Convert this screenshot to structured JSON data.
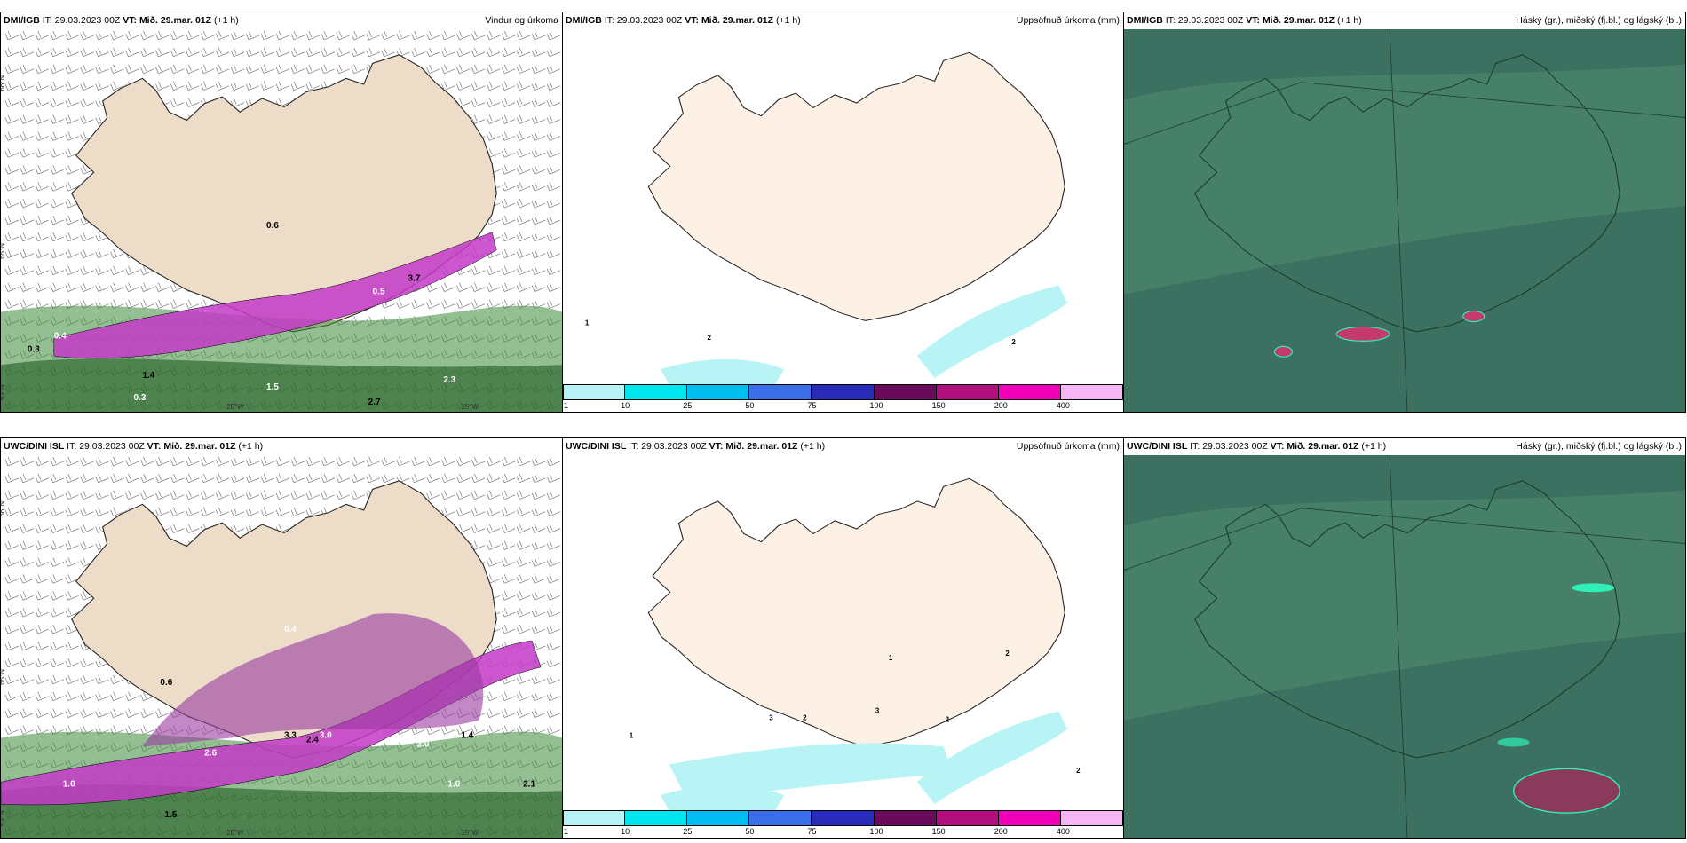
{
  "panels": [
    {
      "id": "p1",
      "source": "DMI/IGB",
      "it_label": "IT:",
      "it_value": "29.03.2023 00Z",
      "vt_label": "VT:",
      "vt_value": "Mið. 29.mar. 01Z",
      "lead": "(+1 h)",
      "title": "Vindur og úrkoma",
      "kind": "wind"
    },
    {
      "id": "p2",
      "source": "DMI/IGB",
      "it_label": "IT:",
      "it_value": "29.03.2023 00Z",
      "vt_label": "VT:",
      "vt_value": "Mið. 29.mar. 01Z",
      "lead": "(+1 h)",
      "title": "Uppsöfnuð úrkoma (mm)",
      "kind": "accum"
    },
    {
      "id": "p3",
      "source": "DMI/IGB",
      "it_label": "IT:",
      "it_value": "29.03.2023 00Z",
      "vt_label": "VT:",
      "vt_value": "Mið. 29.mar. 01Z",
      "lead": "(+1 h)",
      "title": "Háský (gr.), miðský (fj.bl.) og lágský (bl.)",
      "kind": "cloud"
    },
    {
      "id": "p4",
      "source": "UWC/DINI ISL",
      "it_label": "IT:",
      "it_value": "29.03.2023 00Z",
      "vt_label": "VT:",
      "vt_value": "Mið. 29.mar. 01Z",
      "lead": "(+1 h)",
      "title": "",
      "kind": "wind"
    },
    {
      "id": "p5",
      "source": "UWC/DINI ISL",
      "it_label": "IT:",
      "it_value": "29.03.2023 00Z",
      "vt_label": "VT:",
      "vt_value": "Mið. 29.mar. 01Z",
      "lead": "(+1 h)",
      "title": "Uppsöfnuð úrkoma (mm)",
      "kind": "accum"
    },
    {
      "id": "p6",
      "source": "UWC/DINI ISL",
      "it_label": "IT:",
      "it_value": "29.03.2023 00Z",
      "vt_label": "VT:",
      "vt_value": "Mið. 29.mar. 01Z",
      "lead": "(+1 h)",
      "title": "Háský (gr.), miðský (fj.bl.) og lágský (bl.)",
      "kind": "cloud"
    }
  ],
  "colorbar": {
    "ticks": [
      "1",
      "10",
      "25",
      "50",
      "75",
      "100",
      "150",
      "200",
      "400"
    ],
    "colors": [
      "#b8f4f6",
      "#00e6ee",
      "#00bff0",
      "#3a6fe8",
      "#2a2ab8",
      "#6a0a5a",
      "#b0107e",
      "#f000b8",
      "#f6b6f4"
    ]
  },
  "wind_labels": {
    "lat_a": "66°N",
    "lat_b": "65°N",
    "lat_c": "63°N",
    "lon_a": "20°W",
    "lon_b": "15°W",
    "p1_values": [
      "0.3",
      "1.4",
      "1.5",
      "2.7",
      "2.3",
      "3.7",
      "0.5",
      "0.3",
      "0.4",
      "0.6"
    ],
    "p4_values": [
      "1.0",
      "1.5",
      "2.6",
      "3.3",
      "3.0",
      "2.4",
      "2.0",
      "1.4",
      "1.0",
      "2.1",
      "0.4",
      "0.6"
    ]
  },
  "accum_labels": {
    "p2_values": [
      "1",
      "2",
      "2"
    ],
    "p5_values": [
      "1",
      "3",
      "3",
      "2",
      "2",
      "1",
      "2",
      "2"
    ]
  },
  "colors": {
    "land": "#ecdcc8",
    "land_accum": "#fdf0e4",
    "cloud_base": "#3c7060",
    "rain_green": "#3a8a3a",
    "rain_purple": "#c43ac8"
  }
}
